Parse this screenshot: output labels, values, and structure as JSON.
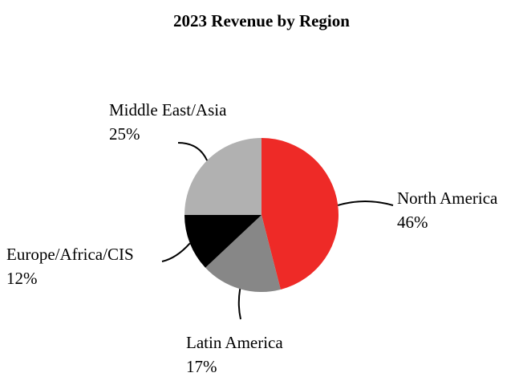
{
  "chart_data": {
    "type": "pie",
    "title": "2023 Revenue by Region",
    "slices": [
      {
        "label": "North America",
        "value": 46,
        "value_label": "46%",
        "color": "#ee2a27"
      },
      {
        "label": "Latin America",
        "value": 17,
        "value_label": "17%",
        "color": "#878787"
      },
      {
        "label": "Europe/Africa/CIS",
        "value": 12,
        "value_label": "12%",
        "color": "#000000"
      },
      {
        "label": "Middle East/Asia",
        "value": 25,
        "value_label": "25%",
        "color": "#b1b1b1"
      }
    ],
    "start_angle": "12 o'clock",
    "direction": "clockwise",
    "legend": "none"
  }
}
